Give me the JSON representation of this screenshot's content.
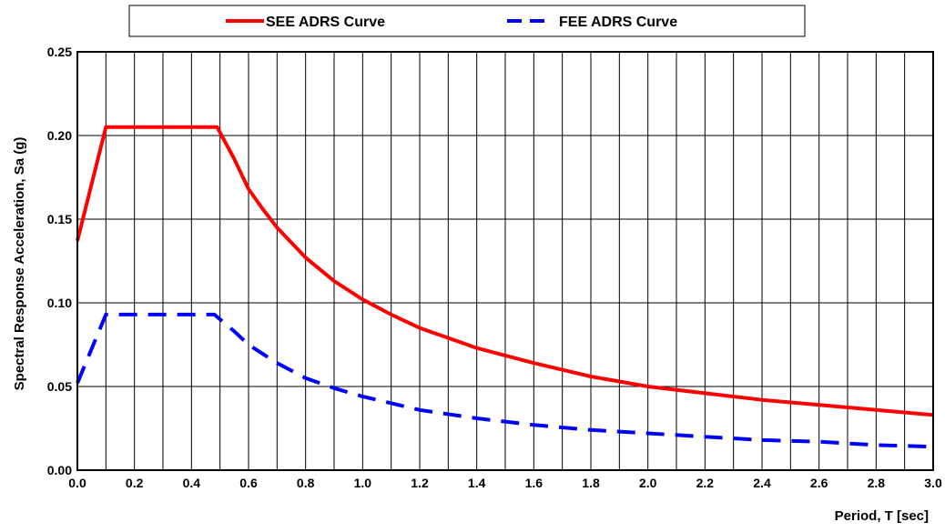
{
  "chart_data": {
    "type": "line",
    "title": "",
    "xlabel": "Period, T [sec]",
    "ylabel": "Spectral Response Acceleration, Sa (g)",
    "xlim": [
      0,
      3.0
    ],
    "ylim": [
      0,
      0.25
    ],
    "x_ticks": [
      "0.0",
      "0.2",
      "0.4",
      "0.6",
      "0.8",
      "1.0",
      "1.2",
      "1.4",
      "1.6",
      "1.8",
      "2.0",
      "2.2",
      "2.4",
      "2.6",
      "2.8",
      "3.0"
    ],
    "y_ticks": [
      "0.00",
      "0.05",
      "0.10",
      "0.15",
      "0.20",
      "0.25"
    ],
    "x_gridlines_step": 0.1,
    "y_gridlines_step": 0.05,
    "grid": true,
    "legend_position": "top",
    "series": [
      {
        "name": "SEE ADRS Curve",
        "color": "#ff0000",
        "style": "solid",
        "x": [
          0.0,
          0.1,
          0.49,
          0.55,
          0.6,
          0.65,
          0.7,
          0.8,
          0.9,
          1.0,
          1.1,
          1.2,
          1.4,
          1.6,
          1.8,
          2.0,
          2.2,
          2.4,
          2.6,
          2.8,
          3.0
        ],
        "y": [
          0.137,
          0.205,
          0.205,
          0.186,
          0.168,
          0.156,
          0.145,
          0.127,
          0.113,
          0.102,
          0.093,
          0.085,
          0.073,
          0.064,
          0.056,
          0.05,
          0.046,
          0.042,
          0.039,
          0.036,
          0.033
        ]
      },
      {
        "name": "FEE ADRS Curve",
        "color": "#0000ff",
        "style": "dashed",
        "x": [
          0.0,
          0.1,
          0.48,
          0.55,
          0.6,
          0.7,
          0.8,
          0.9,
          1.0,
          1.2,
          1.4,
          1.6,
          1.8,
          2.0,
          2.2,
          2.4,
          2.6,
          2.8,
          3.0
        ],
        "y": [
          0.052,
          0.093,
          0.093,
          0.083,
          0.075,
          0.064,
          0.055,
          0.049,
          0.044,
          0.036,
          0.031,
          0.027,
          0.024,
          0.022,
          0.02,
          0.018,
          0.017,
          0.015,
          0.014
        ]
      }
    ]
  }
}
